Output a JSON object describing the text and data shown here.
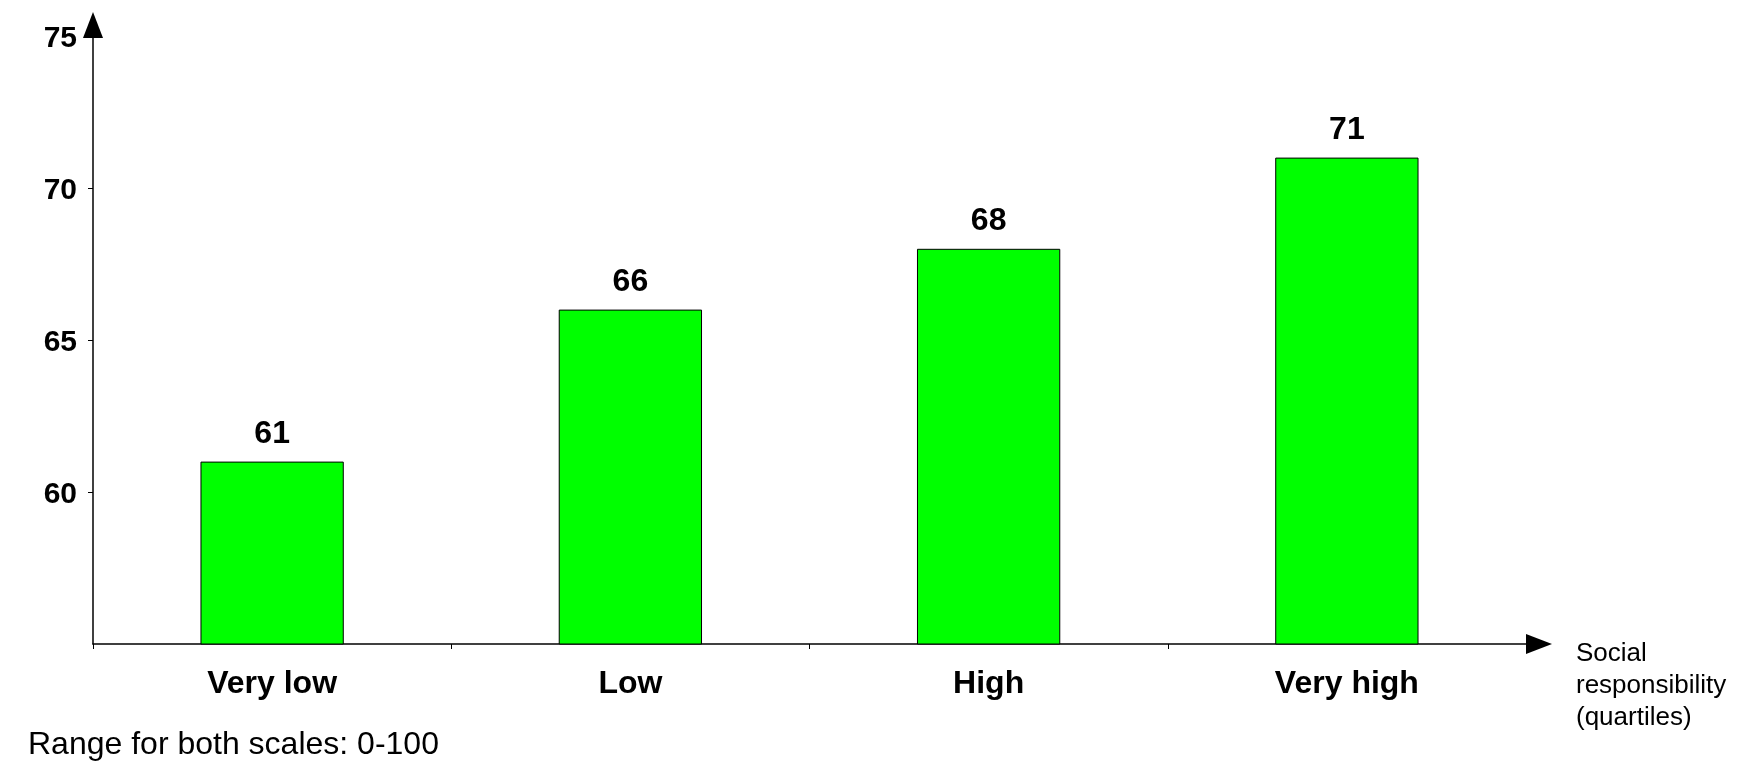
{
  "chart_data": {
    "type": "bar",
    "xlabel": "Social responsibility (quartiles)",
    "categories": [
      "Very low",
      "Low",
      "High",
      "Very high"
    ],
    "values": [
      61,
      66,
      68,
      71
    ],
    "color": "#00ff00",
    "ylim": [
      55,
      75
    ],
    "yticks": [
      60,
      65,
      70,
      75
    ],
    "grid": false,
    "data_labels": true,
    "annotations": [
      "Range for both scales: 0-100"
    ]
  }
}
